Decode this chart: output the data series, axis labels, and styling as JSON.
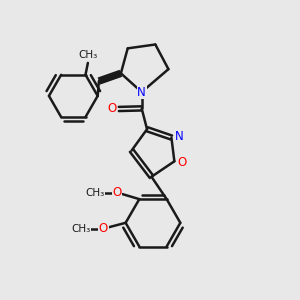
{
  "bg_color": "#e8e8e8",
  "bond_color": "#1a1a1a",
  "N_color": "#0000ff",
  "O_color": "#ff0000",
  "bond_width": 1.8,
  "dbo": 0.06,
  "font_size": 8.5,
  "fig_width": 3.0,
  "fig_height": 3.0,
  "dpi": 100,
  "xlim": [
    0,
    10
  ],
  "ylim": [
    0,
    10
  ]
}
